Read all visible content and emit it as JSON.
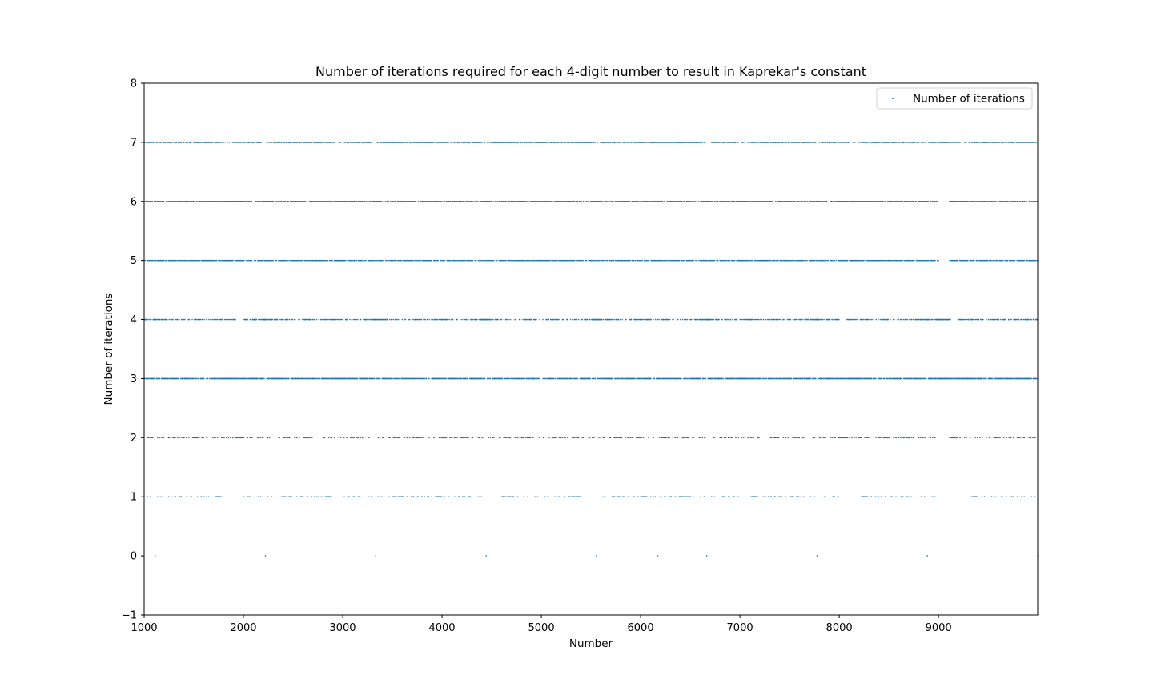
{
  "chart_data": {
    "type": "scatter",
    "title": "Number of iterations required for each 4-digit number to result in Kaprekar's constant",
    "xlabel": "Number",
    "ylabel": "Number of iterations",
    "xlim": [
      1000,
      9999
    ],
    "ylim": [
      -1,
      8
    ],
    "x_ticks": [
      1000,
      2000,
      3000,
      4000,
      5000,
      6000,
      7000,
      8000,
      9000
    ],
    "x_tick_labels": [
      "1000",
      "2000",
      "3000",
      "4000",
      "5000",
      "6000",
      "7000",
      "8000",
      "9000"
    ],
    "y_ticks": [
      -1,
      0,
      1,
      2,
      3,
      4,
      5,
      6,
      7,
      8
    ],
    "y_tick_labels": [
      "−1",
      "0",
      "1",
      "2",
      "3",
      "4",
      "5",
      "6",
      "7",
      "8"
    ],
    "grid": false,
    "legend": {
      "position": "top-right",
      "entries": [
        "Number of iterations"
      ]
    },
    "series": [
      {
        "name": "Number of iterations",
        "color": "#1f77b4",
        "marker_size_note": "tiny dots",
        "x_range": [
          1000,
          9999
        ],
        "y_levels": [
          0,
          1,
          2,
          3,
          4,
          5,
          6,
          7
        ],
        "points_description": "one point per integer n in [1000, 9999] with y = iterations of Kaprekar's routine until 6174 (repdigits shown as 0)"
      }
    ]
  }
}
